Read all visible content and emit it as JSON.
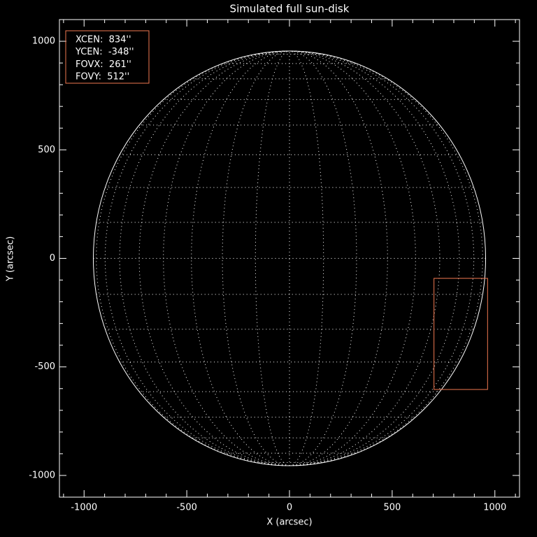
{
  "chart_data": {
    "type": "solar-disk",
    "title": "Simulated full sun-disk",
    "x_label": "X (arcsec)",
    "y_label": "Y (arcsec)",
    "xlim": [
      -1120,
      1120
    ],
    "ylim": [
      -1100,
      1100
    ],
    "xticks": [
      -1000,
      -500,
      0,
      500,
      1000
    ],
    "yticks": [
      -1000,
      -500,
      0,
      500,
      1000
    ],
    "xminorticks": [
      -1100,
      -900,
      -800,
      -700,
      -600,
      -400,
      -300,
      -200,
      -100,
      100,
      200,
      300,
      400,
      600,
      700,
      800,
      900,
      1100
    ],
    "yminorticks": [
      -900,
      -800,
      -700,
      -600,
      -400,
      -300,
      -200,
      -100,
      100,
      200,
      300,
      400,
      600,
      700,
      800,
      900
    ],
    "sun_radius": 955,
    "grid_spacing_deg": 10,
    "fov": {
      "color": "#f07850",
      "xcen": 834,
      "ycen": -348,
      "fovx": 261,
      "fovy": 512,
      "labels": [
        "XCEN:  834''",
        "YCEN:  -348''",
        "FOVX:  261''",
        "FOVY:  512''"
      ]
    }
  }
}
